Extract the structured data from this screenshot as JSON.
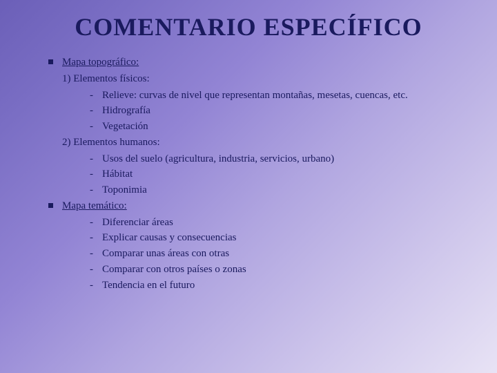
{
  "title": "COMENTARIO ESPECÍFICO",
  "groups": [
    {
      "heading": "Mapa topográfico:",
      "sections": [
        {
          "label": "1) Elementos físicos:",
          "items": [
            "Relieve: curvas de nivel que representan montañas, mesetas, cuencas, etc.",
            "Hidrografía",
            "Vegetación"
          ]
        },
        {
          "label": "2) Elementos humanos:",
          "items": [
            "Usos del suelo (agricultura, industria, servicios, urbano)",
            "Hábitat",
            "Toponimia"
          ]
        }
      ]
    },
    {
      "heading": "Mapa temático:",
      "sections": [
        {
          "label": "",
          "items": [
            "Diferenciar áreas",
            "Explicar causas y consecuencias",
            "Comparar unas áreas con otras",
            "Comparar con otros países o zonas",
            "Tendencia en el futuro"
          ]
        }
      ]
    }
  ],
  "colors": {
    "text": "#1a1a5e",
    "bg_start": "#6b5fb8",
    "bg_end": "#e8e3f5"
  }
}
